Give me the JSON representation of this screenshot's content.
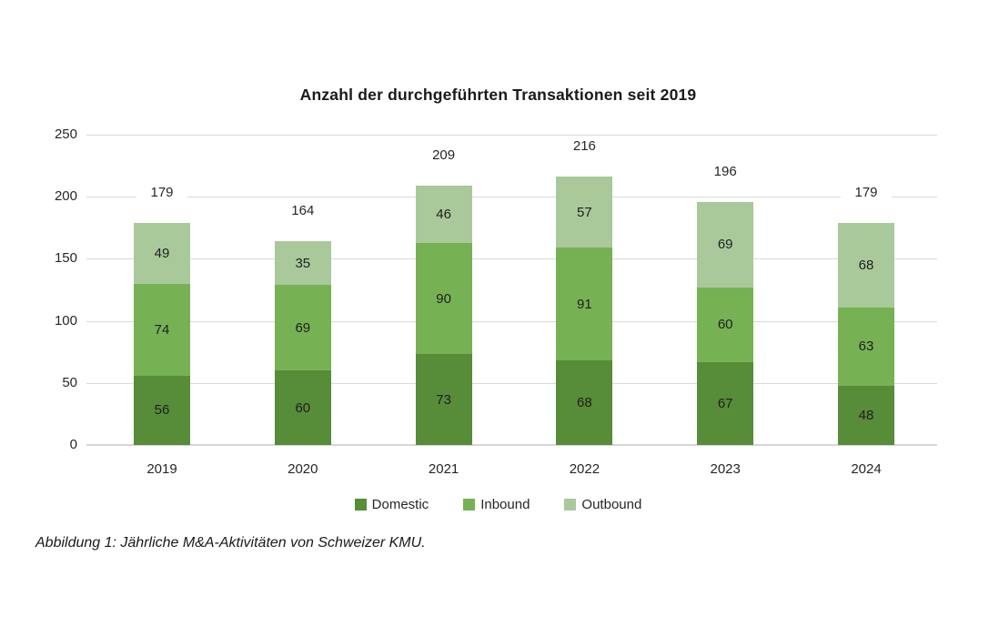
{
  "title": "Anzahl der durchgeführten Transaktionen seit 2019",
  "caption": "Abbildung 1: Jährliche M&A-Aktivitäten von Schweizer KMU.",
  "chart_data": {
    "type": "bar",
    "stacked": true,
    "title": "Anzahl der durchgeführten Transaktionen seit 2019",
    "categories": [
      "2019",
      "2020",
      "2021",
      "2022",
      "2023",
      "2024"
    ],
    "series": [
      {
        "name": "Domestic",
        "color": "#578c39",
        "values": [
          56,
          60,
          73,
          68,
          67,
          48
        ]
      },
      {
        "name": "Inbound",
        "color": "#76b254",
        "values": [
          74,
          69,
          90,
          91,
          60,
          63
        ]
      },
      {
        "name": "Outbound",
        "color": "#a9c99b",
        "values": [
          49,
          35,
          46,
          57,
          69,
          68
        ]
      }
    ],
    "totals": [
      179,
      164,
      209,
      216,
      196,
      179
    ],
    "xlabel": "",
    "ylabel": "",
    "ylim": [
      0,
      250
    ],
    "yticks": [
      0,
      50,
      100,
      150,
      200,
      250
    ],
    "grid": true,
    "legend_position": "bottom",
    "colors": {
      "gridline": "#d9d9d9",
      "axis": "#d6d6d6",
      "text": "#262626",
      "title": "#1a1a1a"
    }
  }
}
